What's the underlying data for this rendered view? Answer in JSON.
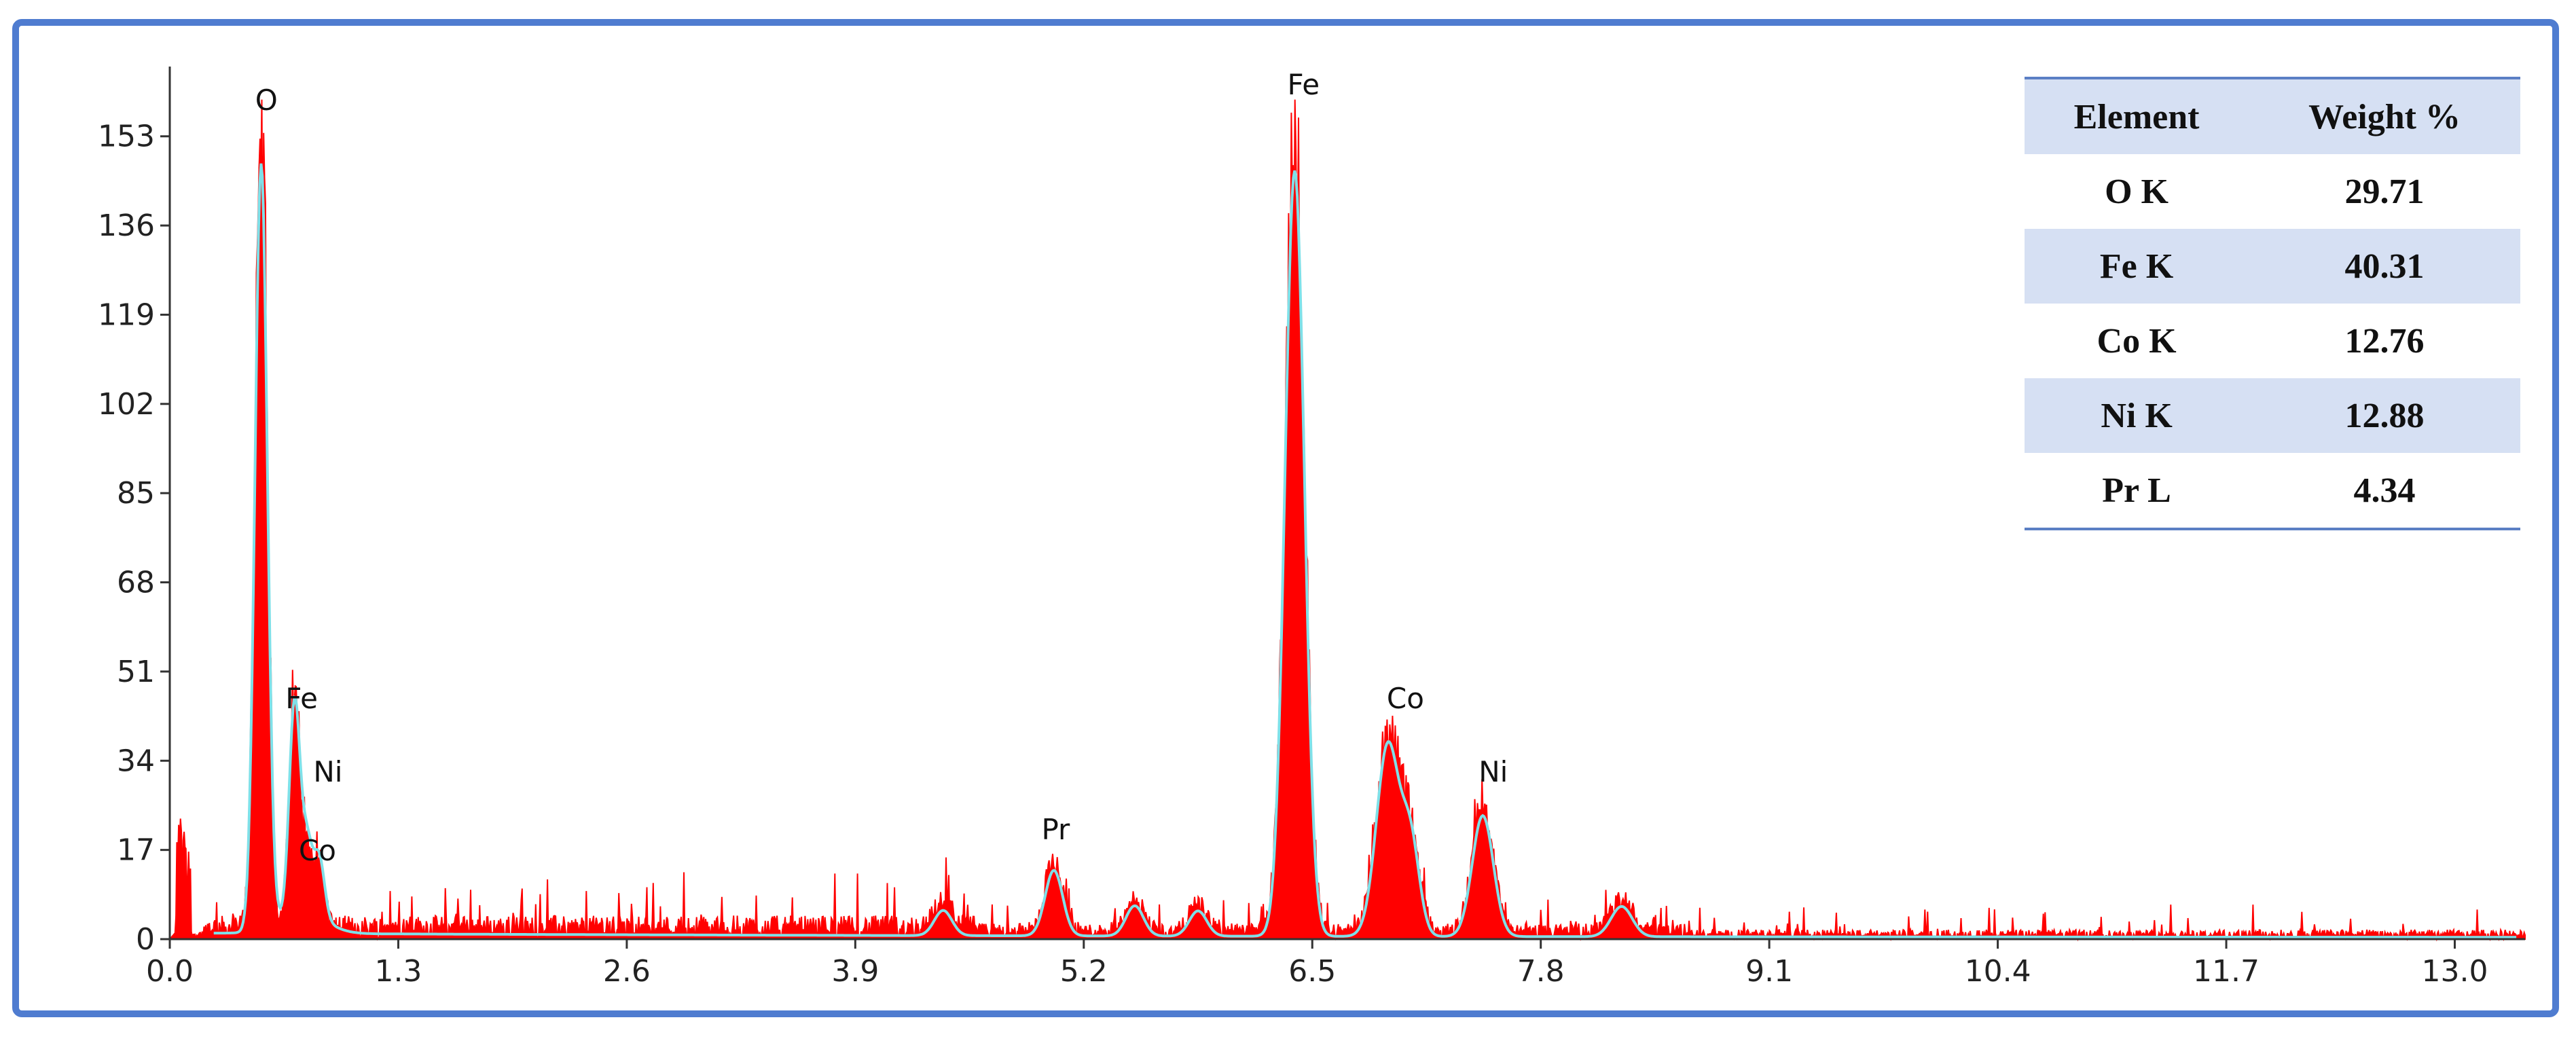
{
  "chart_data": {
    "type": "line",
    "title": "",
    "xlabel": "",
    "ylabel": "",
    "xlim": [
      0.0,
      13.4
    ],
    "ylim": [
      0,
      165
    ],
    "x_ticks": [
      0.0,
      1.3,
      2.6,
      3.9,
      5.2,
      6.5,
      7.8,
      9.1,
      10.4,
      11.7,
      13.0
    ],
    "x_tick_labels": [
      "0.0",
      "1.3",
      "2.6",
      "3.9",
      "5.2",
      "6.5",
      "7.8",
      "9.1",
      "10.4",
      "11.7",
      "13.0"
    ],
    "y_ticks": [
      0,
      17,
      34,
      51,
      68,
      85,
      102,
      119,
      136,
      153
    ],
    "y_tick_labels": [
      "0",
      "17",
      "34",
      "51",
      "68",
      "85",
      "102",
      "119",
      "136",
      "153"
    ],
    "grid": false,
    "colors": {
      "spectrum": "#ff0000",
      "fit": "#7fe0e8",
      "background": "#2e7d32",
      "axis": "#333333"
    },
    "peaks": [
      {
        "name": "O",
        "x": 0.52,
        "height": 152,
        "width": 0.035
      },
      {
        "name": "Fe",
        "x": 0.71,
        "height": 42,
        "width": 0.03
      },
      {
        "name": "Ni",
        "x": 0.85,
        "height": 12,
        "width": 0.03
      },
      {
        "name": "Co",
        "x": 0.78,
        "height": 14,
        "width": 0.03
      },
      {
        "name": "Pr",
        "x": 5.03,
        "height": 13,
        "width": 0.05
      },
      {
        "name": "",
        "x": 5.49,
        "height": 6,
        "width": 0.05
      },
      {
        "name": "",
        "x": 5.85,
        "height": 5,
        "width": 0.05
      },
      {
        "name": "Fe",
        "x": 6.4,
        "height": 152,
        "width": 0.055
      },
      {
        "name": "Co",
        "x": 6.93,
        "height": 38,
        "width": 0.065
      },
      {
        "name": "Ni",
        "x": 7.47,
        "height": 24,
        "width": 0.06
      },
      {
        "name": "",
        "x": 7.06,
        "height": 18,
        "width": 0.05
      },
      {
        "name": "",
        "x": 8.26,
        "height": 6,
        "width": 0.06
      },
      {
        "name": "",
        "x": 4.4,
        "height": 5,
        "width": 0.05
      }
    ],
    "peak_labels": [
      {
        "text": "O",
        "x": 0.55,
        "y": 158
      },
      {
        "text": "Fe",
        "x": 0.75,
        "y": 44
      },
      {
        "text": "Ni",
        "x": 0.9,
        "y": 30
      },
      {
        "text": "Co",
        "x": 0.84,
        "y": 15
      },
      {
        "text": "Pr",
        "x": 5.04,
        "y": 19
      },
      {
        "text": "Fe",
        "x": 6.45,
        "y": 161
      },
      {
        "text": "Co",
        "x": 7.03,
        "y": 44
      },
      {
        "text": "Ni",
        "x": 7.53,
        "y": 30
      }
    ],
    "table": {
      "headers": [
        "Element",
        "Weight %"
      ],
      "rows": [
        {
          "element": "O K",
          "weight": "29.71"
        },
        {
          "element": "Fe K",
          "weight": "40.31"
        },
        {
          "element": "Co K",
          "weight": "12.76"
        },
        {
          "element": "Ni K",
          "weight": "12.88"
        },
        {
          "element": "Pr L",
          "weight": "4.34"
        }
      ]
    }
  }
}
